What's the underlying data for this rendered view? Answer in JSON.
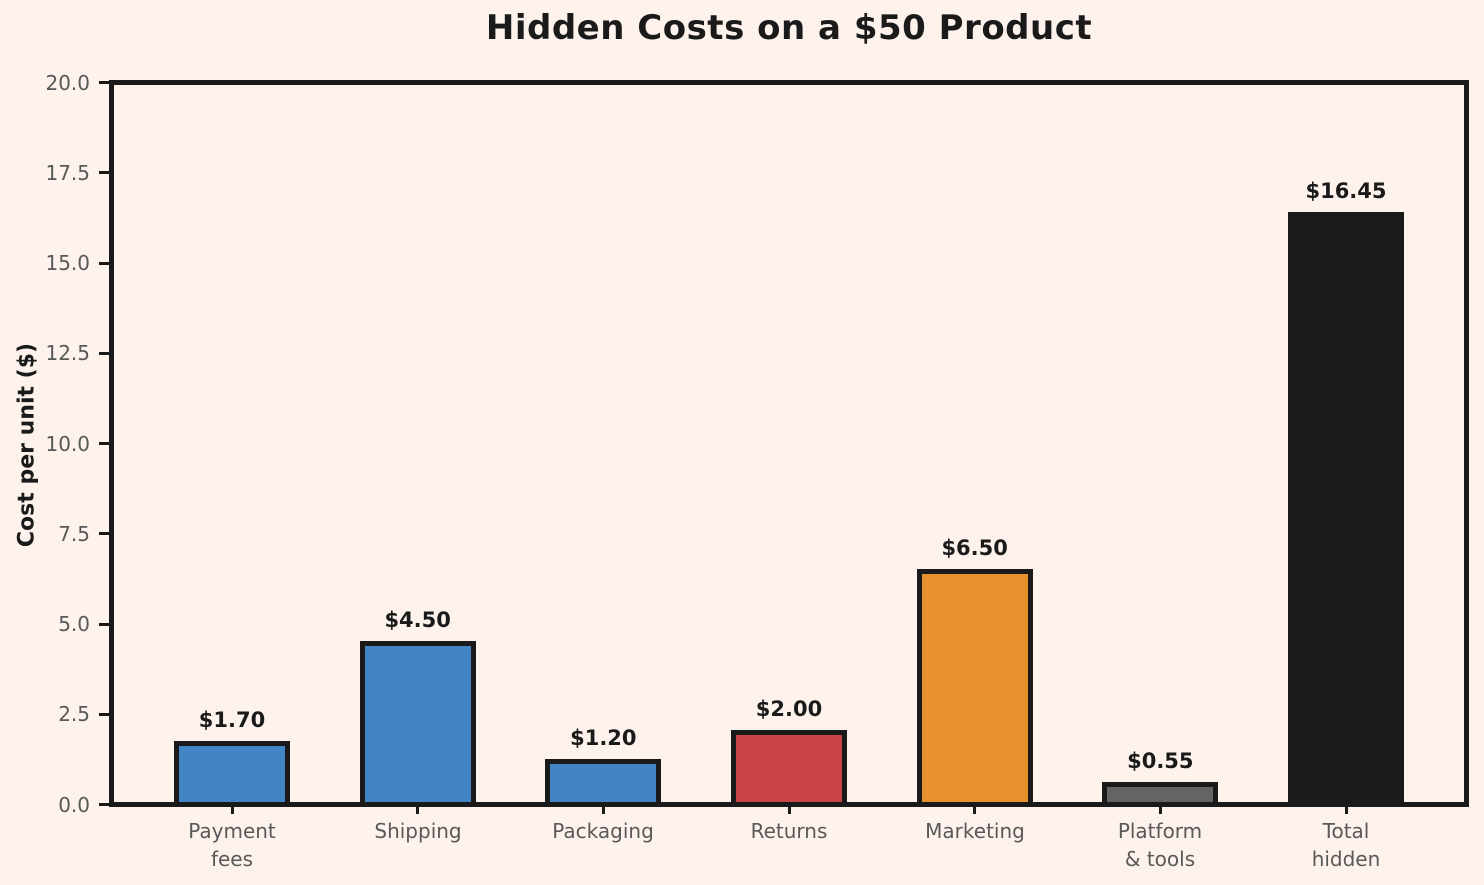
{
  "figure": {
    "title": "Hidden Costs on a $50 Product",
    "background_color": "#fdf3ec",
    "text_color": "#1a1a1a",
    "tick_label_color": "#595959",
    "axis_color": "#1a1a1a"
  },
  "chart_data": {
    "type": "bar",
    "title": "Hidden Costs on a $50 Product",
    "xlabel": "",
    "ylabel": "Cost per unit ($)",
    "ylim": [
      0,
      20
    ],
    "ytick_labels": [
      "0.0",
      "2.5",
      "5.0",
      "7.5",
      "10.0",
      "12.5",
      "15.0",
      "17.5",
      "20.0"
    ],
    "grid": false,
    "legend_position": "none",
    "categories": [
      "Payment\nfees",
      "Shipping",
      "Packaging",
      "Returns",
      "Marketing",
      "Platform\n& tools",
      "Total\nhidden"
    ],
    "values": [
      1.7,
      4.5,
      1.2,
      2.0,
      6.5,
      0.55,
      16.45
    ],
    "value_labels": [
      "$1.70",
      "$4.50",
      "$1.20",
      "$2.00",
      "$6.50",
      "$0.55",
      "$16.45"
    ],
    "bar_colors": [
      "#4285c4",
      "#4285c4",
      "#4285c4",
      "#c94545",
      "#e8912f",
      "#646464",
      "#1a1a1a"
    ],
    "bar_edge_color": "#1a1a1a"
  }
}
